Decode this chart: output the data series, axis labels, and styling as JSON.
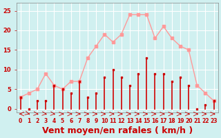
{
  "background_color": "#d0f0f0",
  "grid_color": "#ffffff",
  "xlabel": "Vent moyen/en rafales ( km/h )",
  "xlabel_color": "#cc0000",
  "xlabel_fontsize": 9,
  "tick_color": "#cc0000",
  "yticks": [
    0,
    5,
    10,
    15,
    20,
    25
  ],
  "xticks": [
    0,
    1,
    2,
    3,
    4,
    5,
    6,
    7,
    8,
    9,
    10,
    11,
    12,
    13,
    14,
    15,
    16,
    17,
    18,
    19,
    20,
    21,
    22,
    23
  ],
  "ylim": [
    -1,
    27
  ],
  "xlim": [
    -0.5,
    23.5
  ],
  "wind_avg": [
    3,
    0,
    2,
    2,
    6,
    5,
    4,
    7,
    3,
    4,
    8,
    10,
    8,
    6,
    9,
    13,
    9,
    9,
    7,
    8,
    6,
    0,
    1,
    2
  ],
  "wind_gust": [
    3,
    4,
    5,
    9,
    6,
    5,
    7,
    7,
    13,
    16,
    19,
    17,
    19,
    24,
    24,
    24,
    18,
    21,
    18,
    16,
    15,
    6,
    4,
    2
  ],
  "avg_color": "#cc0000",
  "gust_color": "#ff9999",
  "arrow_color": "#cc0000",
  "directions": [
    270,
    45,
    67,
    67,
    67,
    90,
    90,
    90,
    90,
    90,
    90,
    90,
    90,
    90,
    90,
    90,
    90,
    90,
    90,
    90,
    90,
    90,
    90,
    90
  ]
}
